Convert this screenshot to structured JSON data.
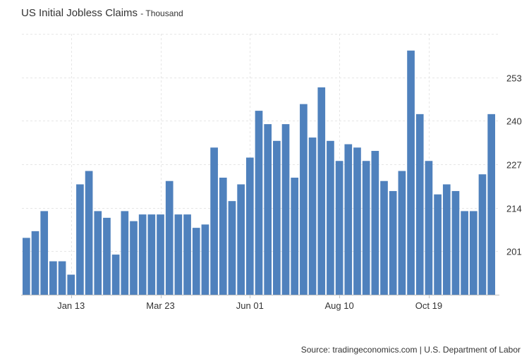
{
  "chart_data": {
    "type": "bar",
    "title": "US Initial Jobless Claims",
    "subtitle": "Thousand",
    "x_tick_labels": [
      "Jan 13",
      "Mar 23",
      "Jun 01",
      "Aug 10",
      "Oct 19"
    ],
    "x_tick_indices": [
      5,
      15,
      25,
      35,
      45
    ],
    "y_ticks": [
      201,
      214,
      227,
      240,
      253
    ],
    "ylim": [
      188,
      266
    ],
    "grid": true,
    "values": [
      205,
      207,
      213,
      198,
      198,
      194,
      221,
      225,
      213,
      211,
      200,
      213,
      210,
      212,
      212,
      212,
      222,
      212,
      212,
      208,
      209,
      232,
      223,
      216,
      221,
      229,
      243,
      239,
      234,
      239,
      223,
      245,
      235,
      250,
      234,
      228,
      233,
      232,
      228,
      231,
      222,
      219,
      225,
      261,
      242,
      228,
      218,
      221,
      219,
      213,
      213,
      224,
      242
    ],
    "series_color": "#4f81bd"
  },
  "source": "Source: tradingeconomics.com | U.S. Department of Labor"
}
